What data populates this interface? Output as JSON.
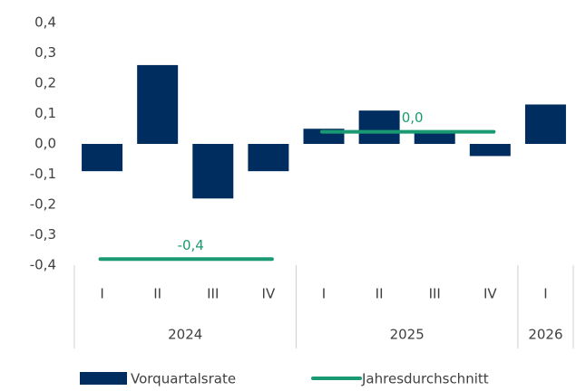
{
  "chart_data": {
    "type": "bar",
    "groups": [
      {
        "label": "2024",
        "categories": [
          "I",
          "II",
          "III",
          "IV"
        ]
      },
      {
        "label": "2025",
        "categories": [
          "I",
          "II",
          "III",
          "IV"
        ]
      },
      {
        "label": "2026",
        "categories": [
          "I"
        ]
      }
    ],
    "series": [
      {
        "name": "Vorquartalsrate",
        "type": "bar",
        "color": "#002d5f",
        "values": [
          -0.09,
          0.26,
          -0.18,
          -0.09,
          0.05,
          0.11,
          0.04,
          -0.04,
          0.13
        ]
      },
      {
        "name": "Jahresdurchschnitt",
        "type": "line",
        "color": "#1a9a72",
        "values": [
          -0.38,
          0.04,
          null
        ],
        "value_labels": [
          "-0,4",
          "0,0",
          null
        ]
      }
    ],
    "ylim": [
      -0.4,
      0.4
    ],
    "yticks": [
      {
        "value": -0.4,
        "label": "-0,4"
      },
      {
        "value": -0.3,
        "label": "-0,3"
      },
      {
        "value": -0.2,
        "label": "-0,2"
      },
      {
        "value": -0.1,
        "label": "-0,1"
      },
      {
        "value": 0,
        "label": "0,0"
      },
      {
        "value": 0.1,
        "label": "0,1"
      },
      {
        "value": 0.2,
        "label": "0,2"
      },
      {
        "value": 0.3,
        "label": "0,3"
      },
      {
        "value": 0.4,
        "label": "0,4"
      }
    ],
    "legend": "bottom"
  }
}
